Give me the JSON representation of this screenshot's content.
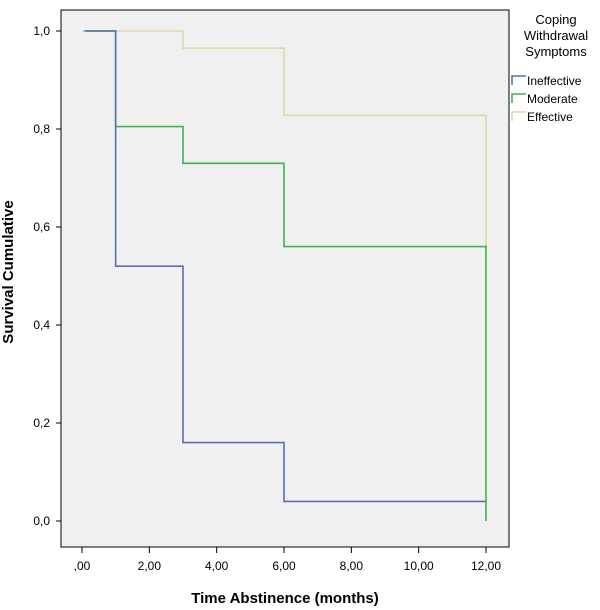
{
  "chart_data": {
    "type": "line",
    "step": true,
    "xlabel": "Time Abstinence (months)",
    "ylabel": "Survival Cumulative",
    "xlim": [
      0,
      12
    ],
    "ylim": [
      0,
      1
    ],
    "x_ticks": [
      0,
      2,
      4,
      6,
      8,
      10,
      12
    ],
    "x_tick_labels": [
      ",00",
      "2,00",
      "4,00",
      "6,00",
      "8,00",
      "10,00",
      "12,00"
    ],
    "y_ticks": [
      0,
      0.2,
      0.4,
      0.6,
      0.8,
      1.0
    ],
    "y_tick_labels": [
      "0,0",
      "0,2",
      "0,4",
      "0,6",
      "0,8",
      "1,0"
    ],
    "grid": false,
    "legend": {
      "title_lines": [
        "Coping",
        "Withdrawal",
        "Symptoms"
      ],
      "placement": "right"
    },
    "series": [
      {
        "name": "Ineffective",
        "color": "#5b6fb5",
        "x": [
          0,
          1,
          3,
          6,
          12
        ],
        "y": [
          1.0,
          0.52,
          0.16,
          0.04,
          0.04
        ]
      },
      {
        "name": "Moderate",
        "color": "#3cb54a",
        "x": [
          0,
          1,
          3,
          6,
          12
        ],
        "y": [
          1.0,
          0.805,
          0.73,
          0.56,
          0.0
        ]
      },
      {
        "name": "Effective",
        "color": "#e2d7a8",
        "x": [
          0,
          3,
          6,
          12
        ],
        "y": [
          1.0,
          0.965,
          0.828,
          0.56
        ]
      }
    ]
  }
}
